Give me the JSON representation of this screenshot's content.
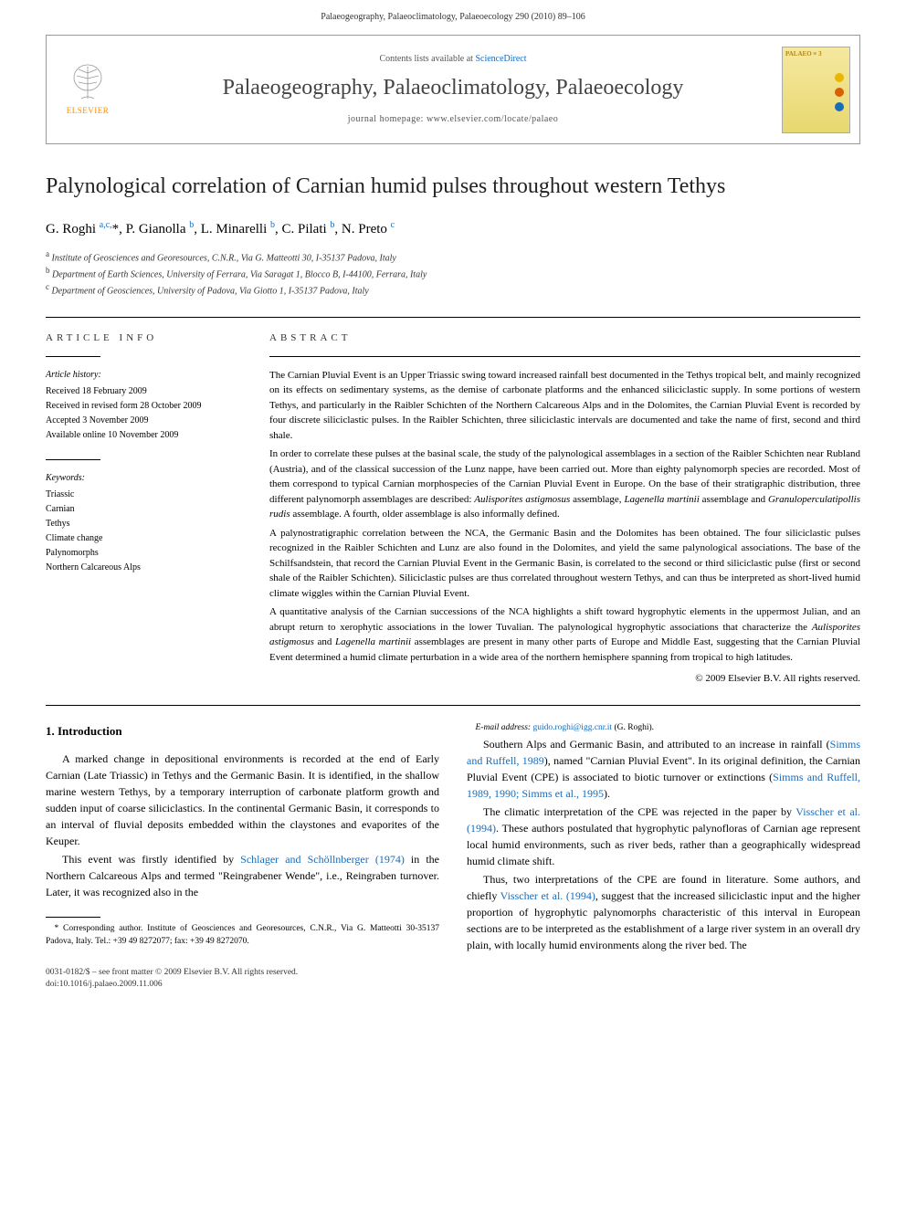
{
  "header": {
    "running": "Palaeogeography, Palaeoclimatology, Palaeoecology 290 (2010) 89–106"
  },
  "banner": {
    "publisher": "ELSEVIER",
    "contents_prefix": "Contents lists available at ",
    "contents_link": "ScienceDirect",
    "journal": "Palaeogeography, Palaeoclimatology, Palaeoecology",
    "homepage_prefix": "journal homepage: ",
    "homepage": "www.elsevier.com/locate/palaeo",
    "cover_text": "PALAEO ≡ 3",
    "colors": {
      "header_bg": "#ffffff",
      "link": "#1a6bb8",
      "journal_text": "#444444",
      "cover_bg_top": "#f5e8a0",
      "cover_bg_bottom": "#e8d870",
      "dot1": "#e8b800",
      "dot2": "#d86000",
      "dot3": "#1a6bb8"
    }
  },
  "article": {
    "title": "Palynological correlation of Carnian humid pulses throughout western Tethys",
    "authors_html": "G. Roghi <sup>a,c,</sup>*, P. Gianolla <sup>b</sup>, L. Minarelli <sup>b</sup>, C. Pilati <sup>b</sup>, N. Preto <sup>c</sup>",
    "affiliations": [
      {
        "sup": "a",
        "text": "Institute of Geosciences and Georesources, C.N.R., Via G. Matteotti 30, I-35137 Padova, Italy"
      },
      {
        "sup": "b",
        "text": "Department of Earth Sciences, University of Ferrara, Via Saragat 1, Blocco B, I-44100, Ferrara, Italy"
      },
      {
        "sup": "c",
        "text": "Department of Geosciences, University of Padova, Via Giotto 1, I-35137 Padova, Italy"
      }
    ]
  },
  "info": {
    "label": "article info",
    "history_label": "Article history:",
    "history": [
      "Received 18 February 2009",
      "Received in revised form 28 October 2009",
      "Accepted 3 November 2009",
      "Available online 10 November 2009"
    ],
    "keywords_label": "Keywords:",
    "keywords": [
      "Triassic",
      "Carnian",
      "Tethys",
      "Climate change",
      "Palynomorphs",
      "Northern Calcareous Alps"
    ]
  },
  "abstract": {
    "label": "abstract",
    "paragraphs": [
      "The Carnian Pluvial Event is an Upper Triassic swing toward increased rainfall best documented in the Tethys tropical belt, and mainly recognized on its effects on sedimentary systems, as the demise of carbonate platforms and the enhanced siliciclastic supply. In some portions of western Tethys, and particularly in the Raibler Schichten of the Northern Calcareous Alps and in the Dolomites, the Carnian Pluvial Event is recorded by four discrete siliciclastic pulses. In the Raibler Schichten, three siliciclastic intervals are documented and take the name of first, second and third shale.",
      "In order to correlate these pulses at the basinal scale, the study of the palynological assemblages in a section of the Raibler Schichten near Rubland (Austria), and of the classical succession of the Lunz nappe, have been carried out. More than eighty palynomorph species are recorded. Most of them correspond to typical Carnian morphospecies of the Carnian Pluvial Event in Europe. On the base of their stratigraphic distribution, three different palynomorph assemblages are described: <em>Aulisporites astigmosus</em> assemblage, <em>Lagenella martinii</em> assemblage and <em>Granuloperculatipollis rudis</em> assemblage. A fourth, older assemblage is also informally defined.",
      "A palynostratigraphic correlation between the NCA, the Germanic Basin and the Dolomites has been obtained. The four siliciclastic pulses recognized in the Raibler Schichten and Lunz are also found in the Dolomites, and yield the same palynological associations. The base of the Schilfsandstein, that record the Carnian Pluvial Event in the Germanic Basin, is correlated to the second or third siliciclastic pulse (first or second shale of the Raibler Schichten). Siliciclastic pulses are thus correlated throughout western Tethys, and can thus be interpreted as short-lived humid climate wiggles within the Carnian Pluvial Event.",
      "A quantitative analysis of the Carnian successions of the NCA highlights a shift toward hygrophytic elements in the uppermost Julian, and an abrupt return to xerophytic associations in the lower Tuvalian. The palynological hygrophytic associations that characterize the <em>Aulisporites astigmosus</em> and <em>Lagenella martinii</em> assemblages are present in many other parts of Europe and Middle East, suggesting that the Carnian Pluvial Event determined a humid climate perturbation in a wide area of the northern hemisphere spanning from tropical to high latitudes."
    ],
    "copyright": "© 2009 Elsevier B.V. All rights reserved."
  },
  "body": {
    "heading": "1. Introduction",
    "p1": "A marked change in depositional environments is recorded at the end of Early Carnian (Late Triassic) in Tethys and the Germanic Basin. It is identified, in the shallow marine western Tethys, by a temporary interruption of carbonate platform growth and sudden input of coarse siliciclastics. In the continental Germanic Basin, it corresponds to an interval of fluvial deposits embedded within the claystones and evaporites of the Keuper.",
    "p2a": "This event was firstly identified by ",
    "p2_link1": "Schlager and Schöllnberger (1974)",
    "p2b": " in the Northern Calcareous Alps and termed \"Reingrabener Wende\", i.e., Reingraben turnover. Later, it was recognized also in the ",
    "p2c": "Southern Alps and Germanic Basin, and attributed to an increase in rainfall (",
    "p2_link2": "Simms and Ruffell, 1989",
    "p2d": "), named \"Carnian Pluvial Event\". In its original definition, the Carnian Pluvial Event (CPE) is associated to biotic turnover or extinctions (",
    "p2_link3": "Simms and Ruffell, 1989, 1990; Simms et al., 1995",
    "p2e": ").",
    "p3a": "The climatic interpretation of the CPE was rejected in the paper by ",
    "p3_link1": "Visscher et al. (1994)",
    "p3b": ". These authors postulated that hygrophytic palynofloras of Carnian age represent local humid environments, such as river beds, rather than a geographically widespread humid climate shift.",
    "p4a": "Thus, two interpretations of the CPE are found in literature. Some authors, and chiefly ",
    "p4_link1": "Visscher et al. (1994)",
    "p4b": ", suggest that the increased siliciclastic input and the higher proportion of hygrophytic palynomorphs characteristic of this interval in European sections are to be interpreted as the establishment of a large river system in an overall dry plain, with locally humid environments along the river bed. The"
  },
  "footnote": {
    "corr": "* Corresponding author. Institute of Geosciences and Georesources, C.N.R., Via G. Matteotti 30-35137 Padova, Italy. Tel.: +39 49 8272077; fax: +39 49 8272070.",
    "email_label": "E-mail address: ",
    "email": "guido.roghi@igg.cnr.it",
    "email_who": " (G. Roghi)."
  },
  "bottom": {
    "left1": "0031-0182/$ – see front matter © 2009 Elsevier B.V. All rights reserved.",
    "left2": "doi:10.1016/j.palaeo.2009.11.006"
  }
}
